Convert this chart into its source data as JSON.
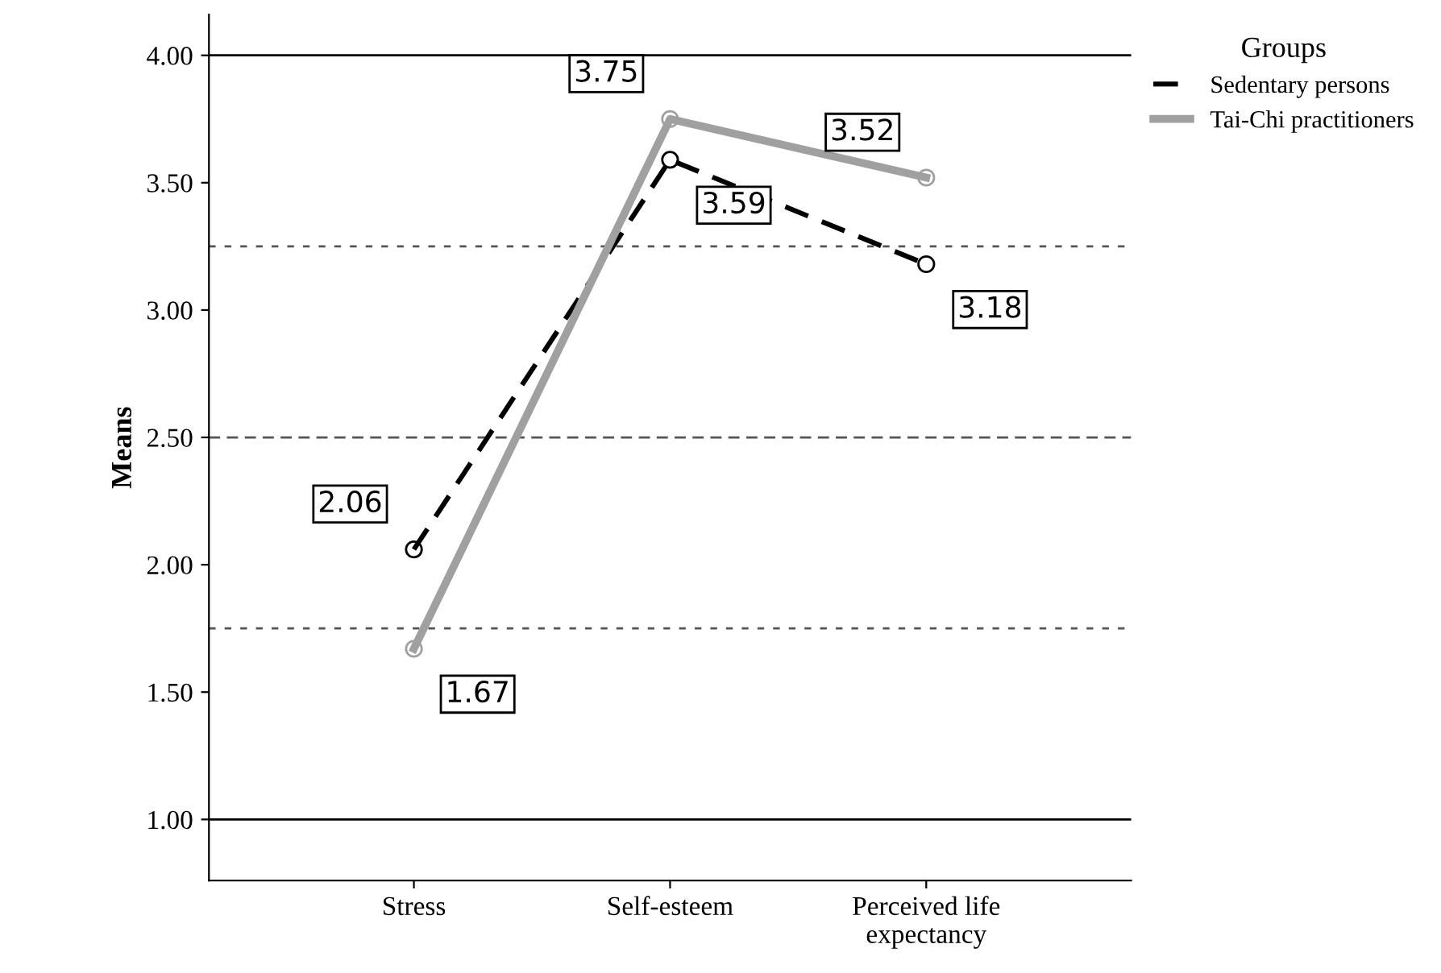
{
  "chart_data": {
    "type": "line",
    "ylabel": "Means",
    "legend_title": "Groups",
    "categories": [
      "Stress",
      "Self-esteem",
      "Perceived life\nexpectancy"
    ],
    "series": [
      {
        "name": "Sedentary persons",
        "color": "#000000",
        "line_style": "dashed",
        "values": [
          2.06,
          3.59,
          3.18
        ]
      },
      {
        "name": "Tai-Chi practitioners",
        "color": "#a0a0a0",
        "line_style": "solid",
        "values": [
          1.67,
          3.75,
          3.52
        ]
      }
    ],
    "ylim": [
      0.76,
      4.16
    ],
    "yticks": [
      {
        "value": 1.0,
        "label": "1.00"
      },
      {
        "value": 1.5,
        "label": "1.50"
      },
      {
        "value": 2.0,
        "label": "2.00"
      },
      {
        "value": 2.5,
        "label": "2.50"
      },
      {
        "value": 3.0,
        "label": "3.00"
      },
      {
        "value": 3.5,
        "label": "3.50"
      },
      {
        "value": 4.0,
        "label": "4.00"
      }
    ],
    "ref_lines": [
      {
        "axis": "y",
        "value": 1.0,
        "color": "#000000",
        "line_style": "solid"
      },
      {
        "axis": "y",
        "value": 4.0,
        "color": "#000000",
        "line_style": "solid"
      },
      {
        "axis": "y",
        "value": 1.75,
        "color": "#555555",
        "line_style": "dotted"
      },
      {
        "axis": "y",
        "value": 2.5,
        "color": "#555555",
        "line_style": "dashed"
      },
      {
        "axis": "y",
        "value": 3.25,
        "color": "#555555",
        "line_style": "dotted"
      }
    ],
    "marker": "circle",
    "data_labels": true,
    "grid": false,
    "legend": "top right"
  }
}
